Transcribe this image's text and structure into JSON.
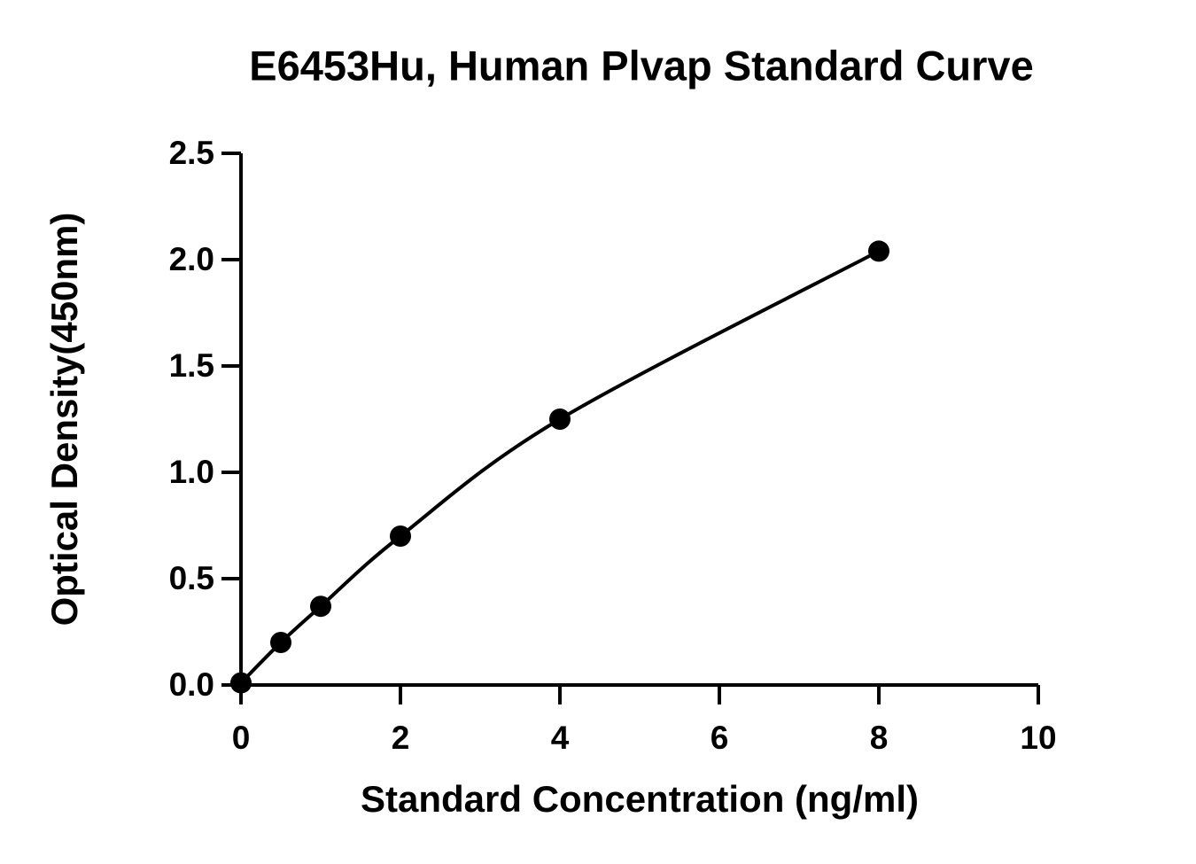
{
  "chart_data": {
    "type": "scatter",
    "title": "E6453Hu, Human Plvap Standard Curve",
    "x_label": "Standard Concentration (ng/ml)",
    "y_label": "Optical Density(450nm)",
    "x": [
      0,
      0.5,
      1,
      2,
      4,
      8
    ],
    "values": [
      0.01,
      0.2,
      0.37,
      0.7,
      1.25,
      2.04
    ],
    "color": "#000000",
    "fit_line": true,
    "xlim": [
      0,
      10
    ],
    "xticks": [
      0,
      2,
      4,
      6,
      8,
      10
    ],
    "ylim": [
      0,
      2.5
    ],
    "yticks": [
      {
        "value": 0,
        "label": "0.0"
      },
      0.5,
      {
        "value": 1,
        "label": "1.0"
      },
      1.5,
      {
        "value": 2,
        "label": "2.0"
      },
      2.5
    ]
  }
}
